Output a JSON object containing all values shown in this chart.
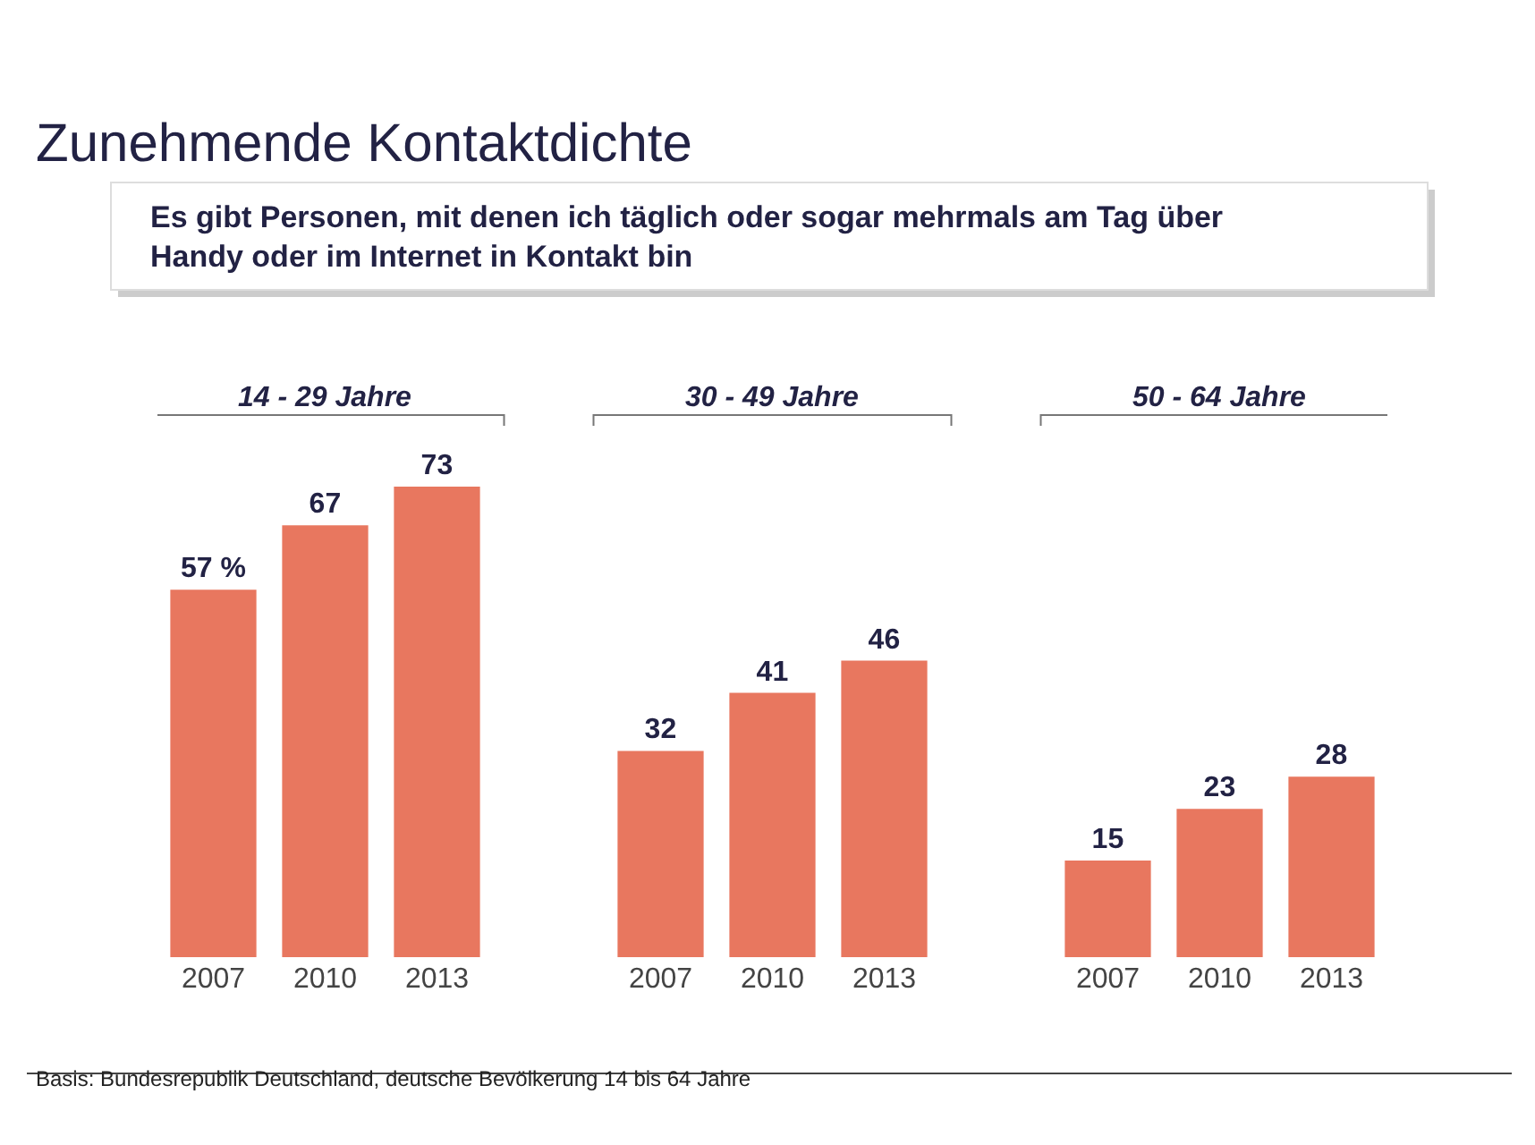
{
  "chart_data": {
    "type": "bar",
    "title": "Zunehmende Kontaktdichte",
    "subtitle": "Es gibt Personen, mit denen ich täglich oder sogar mehrmals am Tag über\nHandy oder im Internet in Kontakt bin",
    "categories": [
      "2007",
      "2010",
      "2013",
      null,
      "2007",
      "2010",
      "2013",
      null,
      "2007",
      "2010",
      "2013"
    ],
    "values": [
      57,
      67,
      73,
      null,
      32,
      41,
      46,
      null,
      15,
      23,
      28
    ],
    "value_labels": [
      "57 %",
      "67",
      "73",
      null,
      "32",
      "41",
      "46",
      null,
      "15",
      "23",
      "28"
    ],
    "color": "#e8775f",
    "annotations": [
      "14 - 29 Jahre",
      "30 - 49 Jahre",
      "50 - 64 Jahre",
      "Basis: Bundesrepublik Deutschland, deutsche Bevölkerung 14 bis 64 Jahre"
    ]
  }
}
